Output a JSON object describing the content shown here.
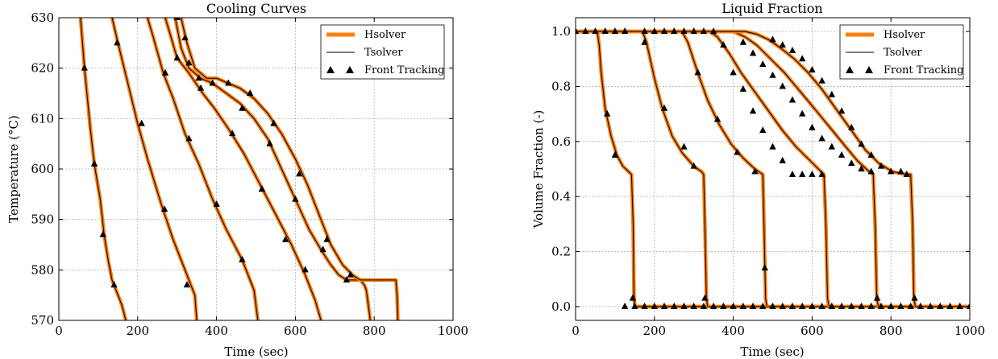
{
  "chart_data": [
    {
      "type": "line",
      "title": "Cooling Curves",
      "xlabel": "Time (sec)",
      "ylabel": "Temperature (°C)",
      "xlim": [
        0,
        1000
      ],
      "ylim": [
        570,
        630
      ],
      "xticks": [
        0,
        200,
        400,
        600,
        800,
        1000
      ],
      "yticks": [
        570,
        580,
        590,
        600,
        610,
        620,
        630
      ],
      "grid": true,
      "legend_position": "top-right",
      "legend": [
        "Hsolver",
        "Tsolver",
        "Front Tracking"
      ],
      "series": [
        {
          "x": [
            55,
            65,
            80,
            90,
            105,
            115,
            125,
            135,
            140,
            145,
            150,
            155,
            160,
            170
          ],
          "y": [
            630,
            620,
            608,
            601,
            594,
            587,
            582,
            578,
            577,
            576,
            575,
            574,
            573,
            570
          ]
        },
        {
          "x": [
            135,
            150,
            175,
            200,
            225,
            260,
            290,
            320,
            335,
            345,
            350
          ],
          "y": [
            630,
            625,
            617,
            609,
            602,
            593,
            586,
            580,
            577,
            575,
            570
          ]
        },
        {
          "x": [
            225,
            240,
            265,
            290,
            320,
            355,
            390,
            425,
            465,
            495,
            505
          ],
          "y": [
            630,
            626,
            619,
            614,
            607,
            601,
            594,
            588,
            582,
            576,
            570
          ]
        },
        {
          "x": [
            270,
            285,
            300,
            330,
            365,
            395,
            430,
            470,
            510,
            550,
            590,
            625,
            650,
            665
          ],
          "y": [
            630,
            626,
            622,
            619,
            615,
            612,
            608,
            603,
            597,
            591,
            585,
            579,
            574,
            570
          ]
        },
        {
          "x": [
            295,
            310,
            330,
            360,
            390,
            425,
            460,
            495,
            530,
            565,
            600,
            635,
            665,
            690,
            710,
            730,
            750,
            765,
            775,
            780,
            785,
            790
          ],
          "y": [
            630,
            624,
            620,
            618,
            617,
            615,
            613,
            610,
            606,
            600,
            594,
            588,
            584,
            581,
            579,
            578,
            578,
            578,
            577,
            576,
            573,
            570
          ]
        },
        {
          "x": [
            310,
            325,
            345,
            375,
            400,
            430,
            460,
            495,
            530,
            565,
            600,
            630,
            660,
            690,
            720,
            745,
            765,
            790,
            810,
            830,
            845,
            855,
            858,
            860
          ],
          "y": [
            630,
            625,
            620,
            618,
            618,
            617,
            616,
            614,
            611,
            607,
            602,
            597,
            591,
            585,
            581,
            579,
            578,
            578,
            578,
            578,
            578,
            578,
            575,
            570
          ]
        }
      ],
      "markers": [
        {
          "x": [
            65,
            90,
            112,
            140
          ],
          "y": [
            620,
            601,
            587,
            577
          ]
        },
        {
          "x": [
            148,
            210,
            268,
            325
          ],
          "y": [
            625,
            609,
            592,
            577
          ]
        },
        {
          "x": [
            270,
            330,
            400,
            465
          ],
          "y": [
            619,
            606,
            593,
            582
          ]
        },
        {
          "x": [
            300,
            360,
            440,
            515,
            575,
            625
          ],
          "y": [
            622,
            616,
            607,
            596,
            586,
            580
          ]
        },
        {
          "x": [
            300,
            330,
            390,
            465,
            535,
            600,
            670,
            730
          ],
          "y": [
            630,
            621,
            617,
            612,
            605,
            594,
            584,
            578
          ]
        },
        {
          "x": [
            320,
            355,
            430,
            485,
            545,
            610,
            680,
            740
          ],
          "y": [
            626,
            618,
            617,
            615,
            609,
            599,
            586,
            579
          ]
        }
      ]
    },
    {
      "type": "line",
      "title": "Liquid Fraction",
      "xlabel": "Time (sec)",
      "ylabel": "Volume Fraction (-)",
      "xlim": [
        0,
        1000
      ],
      "ylim": [
        -0.05,
        1.05
      ],
      "xticks": [
        0,
        200,
        400,
        600,
        800,
        1000
      ],
      "yticks": [
        0.0,
        0.2,
        0.4,
        0.6,
        0.8,
        1.0
      ],
      "ytick_labels": [
        "0.0",
        "0.2",
        "0.4",
        "0.6",
        "0.8",
        "1.0"
      ],
      "grid": true,
      "legend_position": "top-right",
      "legend": [
        "Hsolver",
        "Tsolver",
        "Front Tracking"
      ],
      "series": [
        {
          "x": [
            0,
            55,
            60,
            65,
            75,
            90,
            105,
            120,
            135,
            142,
            146,
            148,
            150,
            160,
            1000
          ],
          "y": [
            1.0,
            1.0,
            0.95,
            0.85,
            0.72,
            0.62,
            0.55,
            0.51,
            0.49,
            0.48,
            0.3,
            0.05,
            0.0,
            0.0,
            0.0
          ]
        },
        {
          "x": [
            0,
            170,
            180,
            200,
            220,
            245,
            270,
            300,
            320,
            325,
            328,
            332,
            335
          ],
          "y": [
            1.0,
            1.0,
            0.96,
            0.83,
            0.72,
            0.62,
            0.56,
            0.51,
            0.49,
            0.48,
            0.3,
            0.03,
            0.0
          ]
        },
        {
          "x": [
            0,
            270,
            285,
            310,
            335,
            365,
            395,
            425,
            455,
            475,
            478,
            482,
            485
          ],
          "y": [
            1.0,
            1.0,
            0.96,
            0.85,
            0.75,
            0.66,
            0.59,
            0.54,
            0.5,
            0.48,
            0.3,
            0.03,
            0.0
          ]
        },
        {
          "x": [
            0,
            340,
            360,
            390,
            420,
            455,
            490,
            525,
            560,
            595,
            630,
            635,
            639,
            643
          ],
          "y": [
            1.0,
            1.0,
            0.98,
            0.92,
            0.85,
            0.78,
            0.71,
            0.64,
            0.58,
            0.53,
            0.48,
            0.3,
            0.03,
            0.0
          ]
        },
        {
          "x": [
            0,
            400,
            430,
            460,
            495,
            530,
            565,
            600,
            640,
            680,
            715,
            745,
            755,
            760,
            764,
            768
          ],
          "y": [
            1.0,
            1.0,
            0.98,
            0.95,
            0.9,
            0.85,
            0.79,
            0.73,
            0.66,
            0.59,
            0.53,
            0.49,
            0.48,
            0.3,
            0.03,
            0.0
          ]
        },
        {
          "x": [
            0,
            430,
            460,
            490,
            520,
            555,
            590,
            625,
            660,
            700,
            735,
            770,
            805,
            840,
            850,
            855,
            858,
            862
          ],
          "y": [
            1.0,
            1.0,
            0.99,
            0.97,
            0.94,
            0.9,
            0.85,
            0.79,
            0.72,
            0.64,
            0.57,
            0.52,
            0.49,
            0.48,
            0.48,
            0.3,
            0.03,
            0.0
          ]
        }
      ],
      "markers": [
        {
          "x": [
            0,
            25,
            50,
            80,
            100,
            125,
            150,
            175,
            200,
            225,
            250,
            275,
            300,
            325,
            350,
            375,
            400,
            425,
            450,
            475,
            500,
            525,
            550,
            575,
            600,
            625,
            650,
            675,
            700,
            725,
            750,
            775,
            800,
            825,
            850,
            875,
            900,
            925,
            950,
            975,
            1000
          ],
          "y": [
            1.0,
            1.0,
            1.0,
            0.7,
            0.55,
            0.0,
            0.0,
            0.0,
            0.0,
            0.0,
            0.0,
            0.0,
            0.0,
            0.0,
            0.0,
            0.0,
            0.0,
            0.0,
            0.0,
            0.0,
            0.0,
            0.0,
            0.0,
            0.0,
            0.0,
            0.0,
            0.0,
            0.0,
            0.0,
            0.0,
            0.0,
            0.0,
            0.0,
            0.0,
            0.0,
            0.0,
            0.0,
            0.0,
            0.0,
            0.0,
            0.0
          ]
        },
        {
          "x": [
            75,
            100,
            125,
            145,
            175,
            225,
            275,
            300,
            328
          ],
          "y": [
            1.0,
            1.0,
            1.0,
            0.03,
            0.96,
            0.72,
            0.58,
            0.51,
            0.03
          ]
        },
        {
          "x": [
            310,
            360,
            410,
            455,
            480
          ],
          "y": [
            0.85,
            0.68,
            0.56,
            0.49,
            0.14
          ]
        },
        {
          "x": [
            175,
            200,
            225,
            250,
            275,
            300,
            325,
            350,
            375,
            400,
            425,
            450,
            475,
            500,
            525,
            550,
            575,
            600,
            625
          ],
          "y": [
            1.0,
            1.0,
            1.0,
            1.0,
            1.0,
            1.0,
            1.0,
            1.0,
            0.95,
            0.85,
            0.79,
            0.71,
            0.64,
            0.58,
            0.53,
            0.48,
            0.48,
            0.48,
            0.48
          ]
        },
        {
          "x": [
            425,
            450,
            475,
            500,
            525,
            550,
            575,
            600,
            625,
            650,
            675,
            700,
            725,
            750,
            765
          ],
          "y": [
            0.96,
            0.92,
            0.88,
            0.84,
            0.8,
            0.75,
            0.7,
            0.65,
            0.61,
            0.58,
            0.55,
            0.52,
            0.5,
            0.49,
            0.03
          ]
        },
        {
          "x": [
            500,
            525,
            550,
            575,
            600,
            625,
            650,
            675,
            700,
            725,
            750,
            775,
            800,
            825,
            840,
            860
          ],
          "y": [
            0.97,
            0.95,
            0.93,
            0.9,
            0.86,
            0.82,
            0.77,
            0.71,
            0.65,
            0.59,
            0.55,
            0.51,
            0.49,
            0.49,
            0.48,
            0.03
          ]
        }
      ]
    }
  ],
  "colors": {
    "hsolver": "#ff7f0e",
    "tsolver": "#000000",
    "marker": "#000000",
    "grid": "#b0b0b0"
  }
}
